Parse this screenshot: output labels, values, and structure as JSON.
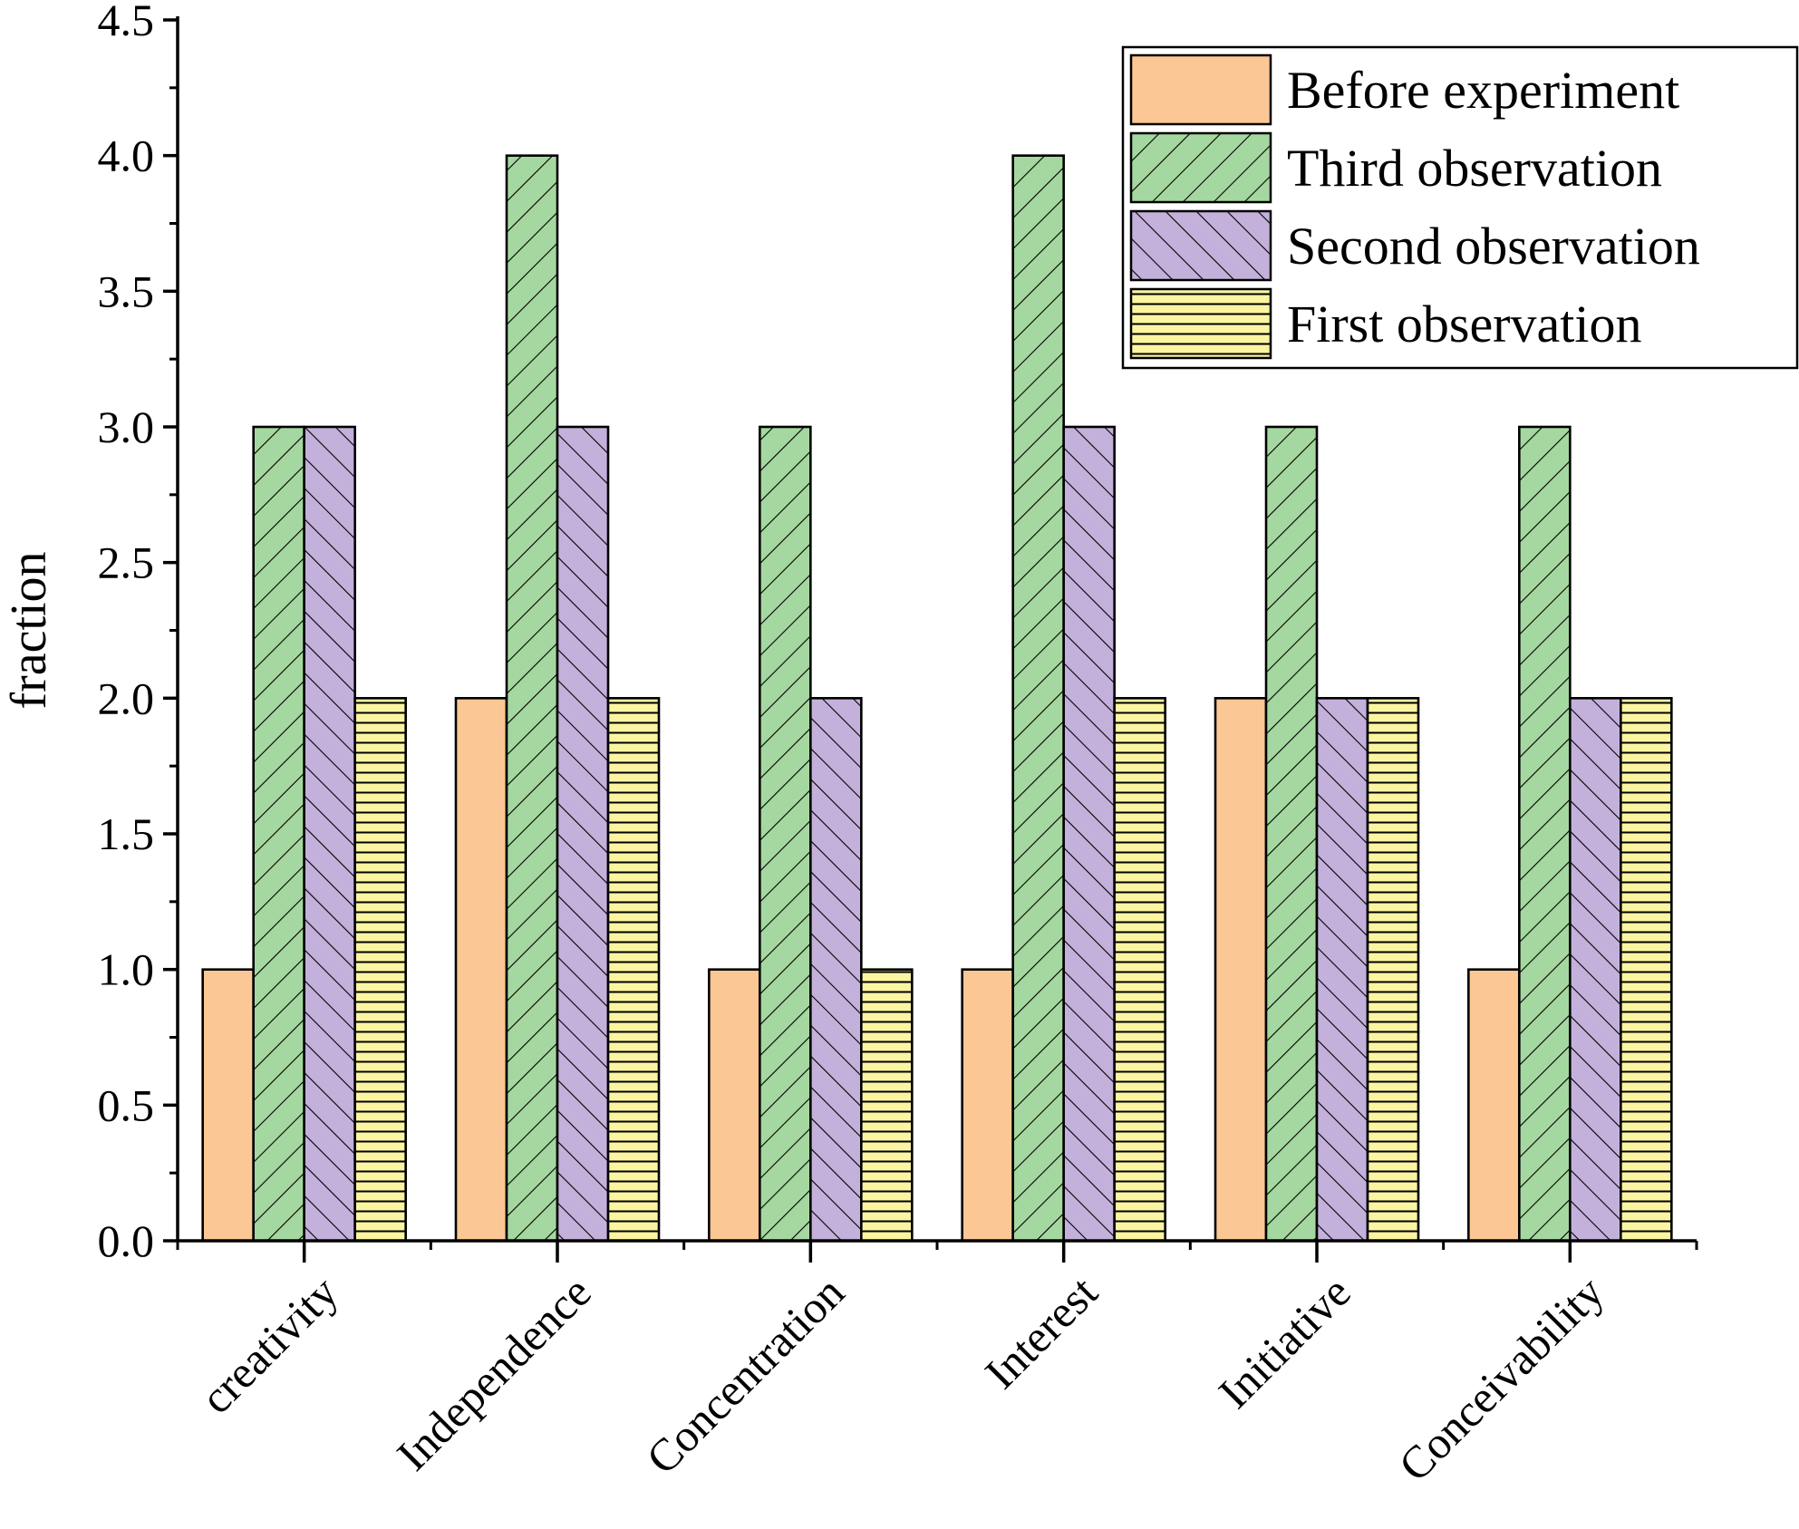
{
  "chart_data": {
    "type": "bar",
    "title": "",
    "xlabel": "",
    "ylabel": "fraction",
    "ylim": [
      0,
      4.5
    ],
    "yticks": [
      "0.0",
      "0.5",
      "1.0",
      "1.5",
      "2.0",
      "2.5",
      "3.0",
      "3.5",
      "4.0",
      "4.5"
    ],
    "categories": [
      "creativity",
      "Independence",
      "Concentration",
      "Interest",
      "Initiative",
      "Conceivability"
    ],
    "series": [
      {
        "name": "Before experiment",
        "values": [
          1,
          2,
          1,
          1,
          2,
          1
        ],
        "color": "#FBC795",
        "pattern": "solid"
      },
      {
        "name": "Third observation",
        "values": [
          3,
          4,
          3,
          4,
          3,
          3
        ],
        "color": "#A5D8A0",
        "pattern": "forward-diagonal"
      },
      {
        "name": "Second observation",
        "values": [
          3,
          3,
          2,
          3,
          2,
          2
        ],
        "color": "#C4B1DB",
        "pattern": "back-diagonal"
      },
      {
        "name": "First observation",
        "values": [
          2,
          2,
          1,
          2,
          2,
          2
        ],
        "color": "#FBF5A2",
        "pattern": "horizontal"
      }
    ],
    "legend_order": [
      0,
      1,
      2,
      3
    ],
    "legend_position": "top-right",
    "grid": false
  }
}
